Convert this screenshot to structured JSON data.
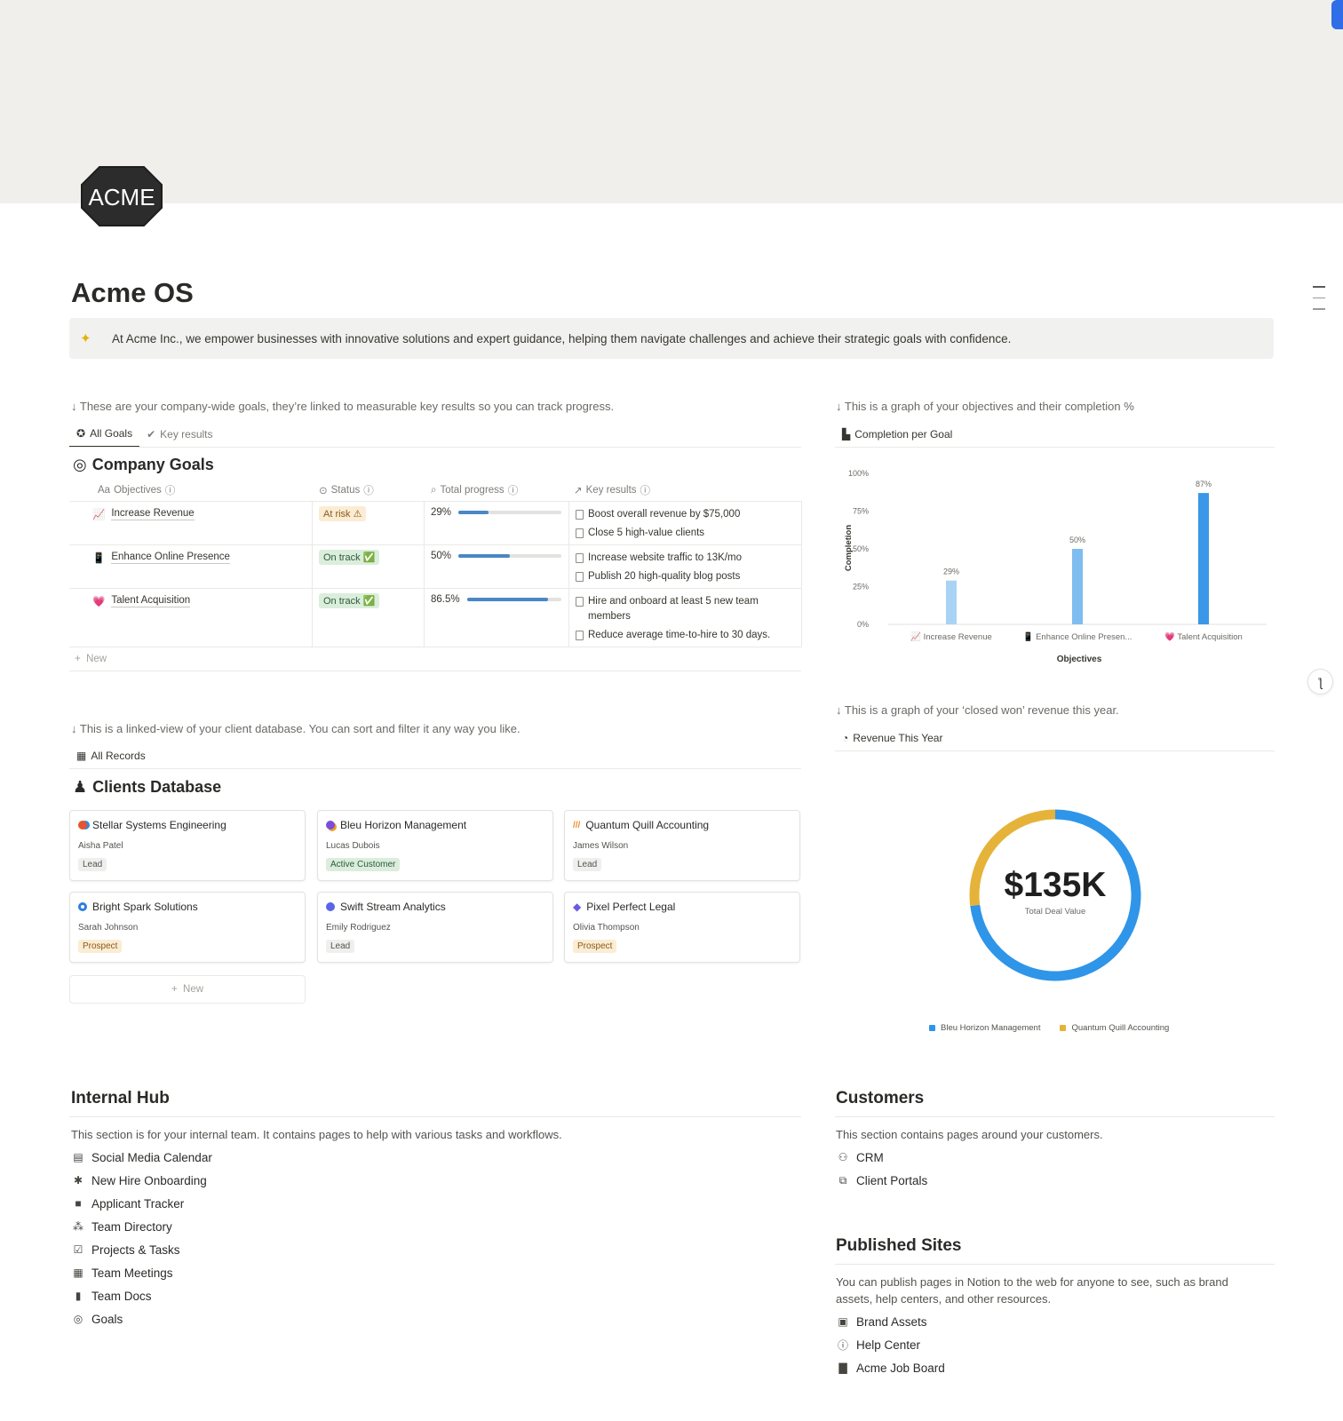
{
  "page": {
    "title": "Acme OS",
    "logo_text": "ACME",
    "callout_icon": "sparkle-icon",
    "callout": "At Acme Inc., we empower businesses with innovative solutions and expert guidance, helping them navigate challenges and achieve their strategic goals with confidence."
  },
  "goals": {
    "hint": "↓ These are your company-wide goals, they’re linked to measurable key results so you can track progress.",
    "tabs": [
      "All Goals",
      "Key results"
    ],
    "title": "Company Goals",
    "columns": [
      "Objectives",
      "Status",
      "Total progress",
      "Key results"
    ],
    "rows": [
      {
        "icon": "chart-increasing-icon",
        "emoji": "📈",
        "objective": "Increase Revenue",
        "status": "At risk ⚠",
        "status_kind": "risk",
        "progress_text": "29%",
        "progress": 0.29,
        "key_results": [
          "Boost overall revenue by $75,000",
          "Close 5 high-value clients"
        ]
      },
      {
        "icon": "mobile-phone-icon",
        "emoji": "📱",
        "objective": "Enhance Online Presence",
        "status": "On track ✅",
        "status_kind": "track",
        "progress_text": "50%",
        "progress": 0.5,
        "key_results": [
          "Increase website traffic to 13K/mo",
          "Publish 20 high-quality blog posts"
        ]
      },
      {
        "icon": "heart-icon",
        "emoji": "💗",
        "objective": "Talent Acquisition",
        "status": "On track ✅",
        "status_kind": "track",
        "progress_text": "86.5%",
        "progress": 0.865,
        "key_results": [
          "Hire and onboard at least 5 new team members",
          "Reduce average time-to-hire to 30 days."
        ]
      }
    ],
    "new_label": "New"
  },
  "completion": {
    "hint": "↓ This is a graph of your objectives and their completion %",
    "tab": "Completion per Goal"
  },
  "chart_data": [
    {
      "type": "bar",
      "title": "",
      "categories": [
        "📈 Increase Revenue",
        "📱 Enhance Online Presen...",
        "💗 Talent Acquisition"
      ],
      "values": [
        29,
        50,
        87
      ],
      "value_labels": [
        "29%",
        "50%",
        "87%"
      ],
      "colors": [
        "#a9d3f5",
        "#7fbcef",
        "#3b97e8"
      ],
      "xlabel": "Objectives",
      "ylabel": "Completion",
      "ylim": [
        0,
        100
      ],
      "yticks": [
        "0%",
        "25%",
        "50%",
        "75%",
        "100%"
      ],
      "grid": false
    },
    {
      "type": "pie",
      "title": "",
      "categories": [
        "Bleu Horizon Management",
        "Quantum Quill Accounting"
      ],
      "values": [
        0.73,
        0.27
      ],
      "colors": [
        "#2f95e8",
        "#e5b33a"
      ],
      "center_value": "$135K",
      "center_label": "Total Deal Value",
      "legend": "bottom"
    }
  ],
  "clients": {
    "hint": "↓ This is a linked-view of your client database. You can sort and filter it any way you like.",
    "tab": "All Records",
    "title": "Clients Database",
    "cards": [
      {
        "name": "Stellar Systems Engineering",
        "person": "Aisha Patel",
        "status": "Lead",
        "kind": "lead",
        "icon": "colorful-dot-icon",
        "color": "#e4542d"
      },
      {
        "name": "Bleu Horizon Management",
        "person": "Lucas Dubois",
        "status": "Active Customer",
        "kind": "active",
        "icon": "colorful-dot-icon",
        "color": "#7c4ddb"
      },
      {
        "name": "Quantum Quill Accounting",
        "person": "James Wilson",
        "status": "Lead",
        "kind": "lead",
        "icon": "stripes-icon",
        "color": "#f08c2b"
      },
      {
        "name": "Bright Spark Solutions",
        "person": "Sarah Johnson",
        "status": "Prospect",
        "kind": "prospect",
        "icon": "ring-icon",
        "color": "#2f7de0"
      },
      {
        "name": "Swift Stream Analytics",
        "person": "Emily Rodriguez",
        "status": "Lead",
        "kind": "lead",
        "icon": "colorful-dot-icon",
        "color": "#5b63e6"
      },
      {
        "name": "Pixel Perfect Legal",
        "person": "Olivia Thompson",
        "status": "Prospect",
        "kind": "prospect",
        "icon": "diamond-icon",
        "color": "#6a5be0"
      }
    ],
    "new_label": "New"
  },
  "revenue": {
    "hint": "↓ This is a graph of your ‘closed won’ revenue this year.",
    "tab": "Revenue This Year"
  },
  "internal": {
    "title": "Internal Hub",
    "desc": "This section is for your internal team. It contains pages to help with various tasks and workflows.",
    "items": [
      {
        "label": "Social Media Calendar",
        "icon": "calendar-grid-icon",
        "glyph": "▤"
      },
      {
        "label": "New Hire Onboarding",
        "icon": "people-icon",
        "glyph": "✱"
      },
      {
        "label": "Applicant Tracker",
        "icon": "briefcase-icon",
        "glyph": "■"
      },
      {
        "label": "Team Directory",
        "icon": "team-icon",
        "glyph": "⁂"
      },
      {
        "label": "Projects & Tasks",
        "icon": "checkbox-icon",
        "glyph": "☑"
      },
      {
        "label": "Team Meetings",
        "icon": "calendar-icon",
        "glyph": "▦"
      },
      {
        "label": "Team Docs",
        "icon": "document-icon",
        "glyph": "▮"
      },
      {
        "label": "Goals",
        "icon": "target-icon",
        "glyph": "◎"
      }
    ]
  },
  "customers": {
    "title": "Customers",
    "desc": "This section contains pages around your customers.",
    "items": [
      {
        "label": "CRM",
        "icon": "group-icon",
        "glyph": "⚇"
      },
      {
        "label": "Client Portals",
        "icon": "portal-icon",
        "glyph": "⧉"
      }
    ]
  },
  "published": {
    "title": "Published Sites",
    "desc": "You can publish pages in Notion to the web for anyone to see, such as brand assets, help centers, and other resources.",
    "items": [
      {
        "label": "Brand Assets",
        "icon": "image-icon",
        "glyph": "▣"
      },
      {
        "label": "Help Center",
        "icon": "info-icon",
        "glyph": "ⓘ"
      },
      {
        "label": "Acme Job Board",
        "icon": "clipboard-icon",
        "glyph": "▇"
      }
    ]
  }
}
